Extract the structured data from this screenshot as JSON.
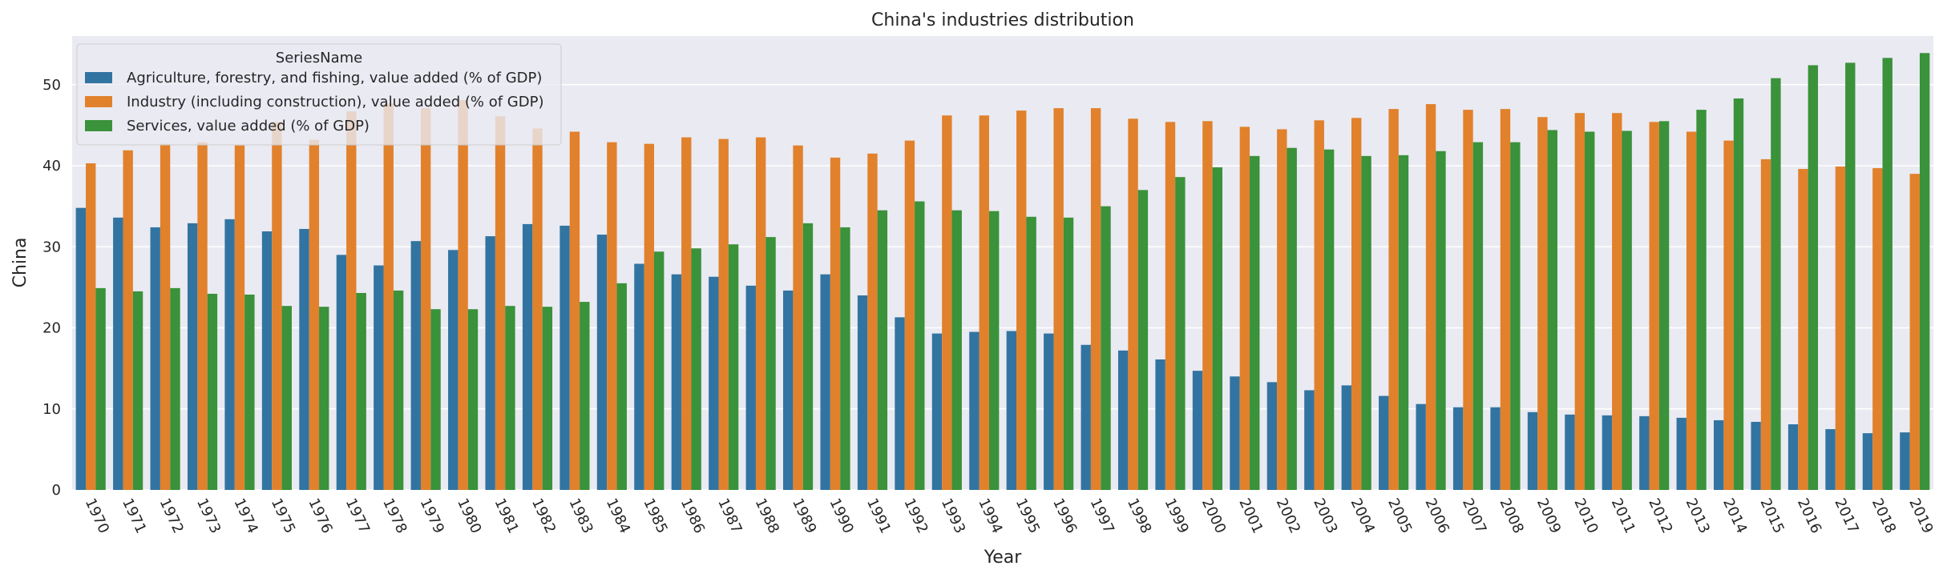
{
  "chart_data": {
    "type": "bar",
    "title": "China's industries distribution",
    "xlabel": "Year",
    "ylabel": "China",
    "ylim": [
      0,
      56
    ],
    "yticks": [
      0,
      10,
      20,
      30,
      40,
      50
    ],
    "grid": true,
    "legend": {
      "title": "SeriesName",
      "placement": "top-left"
    },
    "categories": [
      "1970",
      "1971",
      "1972",
      "1973",
      "1974",
      "1975",
      "1976",
      "1977",
      "1978",
      "1979",
      "1980",
      "1981",
      "1982",
      "1983",
      "1984",
      "1985",
      "1986",
      "1987",
      "1988",
      "1989",
      "1990",
      "1991",
      "1992",
      "1993",
      "1994",
      "1995",
      "1996",
      "1997",
      "1998",
      "1999",
      "2000",
      "2001",
      "2002",
      "2003",
      "2004",
      "2005",
      "2006",
      "2007",
      "2008",
      "2009",
      "2010",
      "2011",
      "2012",
      "2013",
      "2014",
      "2015",
      "2016",
      "2017",
      "2018",
      "2019"
    ],
    "series": [
      {
        "name": "Agriculture, forestry, and fishing, value added (% of GDP)",
        "color": "#3274a1",
        "values": [
          34.8,
          33.6,
          32.4,
          32.9,
          33.4,
          31.9,
          32.2,
          29.0,
          27.7,
          30.7,
          29.6,
          31.3,
          32.8,
          32.6,
          31.5,
          27.9,
          26.6,
          26.3,
          25.2,
          24.6,
          26.6,
          24.0,
          21.3,
          19.3,
          19.5,
          19.6,
          19.3,
          17.9,
          17.2,
          16.1,
          14.7,
          14.0,
          13.3,
          12.3,
          12.9,
          11.6,
          10.6,
          10.2,
          10.2,
          9.6,
          9.3,
          9.2,
          9.1,
          8.9,
          8.6,
          8.4,
          8.1,
          7.5,
          7.0,
          7.1
        ]
      },
      {
        "name": "Industry (including construction), value added (% of GDP)",
        "color": "#e1812c",
        "values": [
          40.3,
          41.9,
          42.7,
          42.9,
          42.5,
          45.4,
          43.2,
          46.7,
          47.7,
          47.1,
          48.1,
          46.1,
          44.6,
          44.2,
          42.9,
          42.7,
          43.5,
          43.3,
          43.5,
          42.5,
          41.0,
          41.5,
          43.1,
          46.2,
          46.2,
          46.8,
          47.1,
          47.1,
          45.8,
          45.4,
          45.5,
          44.8,
          44.5,
          45.6,
          45.9,
          47.0,
          47.6,
          46.9,
          47.0,
          46.0,
          46.5,
          46.5,
          45.4,
          44.2,
          43.1,
          40.8,
          39.6,
          39.9,
          39.7,
          39.0
        ]
      },
      {
        "name": "Services, value added (% of GDP)",
        "color": "#3a923a",
        "values": [
          24.9,
          24.5,
          24.9,
          24.2,
          24.1,
          22.7,
          22.6,
          24.3,
          24.6,
          22.3,
          22.3,
          22.7,
          22.6,
          23.2,
          25.5,
          29.4,
          29.8,
          30.3,
          31.2,
          32.9,
          32.4,
          34.5,
          35.6,
          34.5,
          34.4,
          33.7,
          33.6,
          35.0,
          37.0,
          38.6,
          39.8,
          41.2,
          42.2,
          42.0,
          41.2,
          41.3,
          41.8,
          42.9,
          42.9,
          44.4,
          44.2,
          44.3,
          45.5,
          46.9,
          48.3,
          50.8,
          52.4,
          52.7,
          53.3,
          53.9
        ]
      }
    ]
  }
}
